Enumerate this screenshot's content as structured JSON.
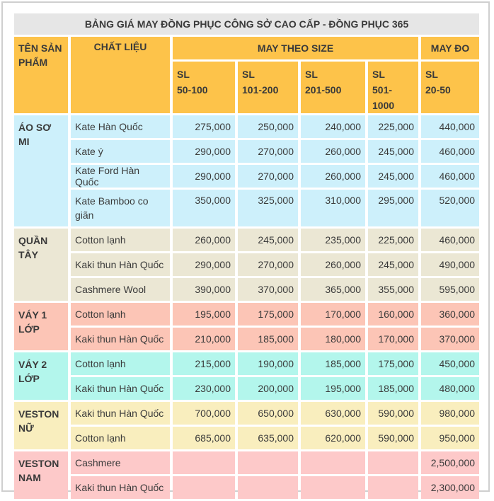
{
  "title": "BẢNG GIÁ MAY ĐỒNG PHỤC CÔNG SỞ CAO CẤP - ĐỒNG PHỤC 365",
  "headers": {
    "product": "TÊN SẢN PHẨM",
    "material": "CHẤT LIỆU",
    "by_size": "MAY THEO SIZE",
    "custom": "MAY ĐO",
    "tiers": [
      {
        "sl": "SL",
        "range": "50-100"
      },
      {
        "sl": "SL",
        "range": "101-200"
      },
      {
        "sl": "SL",
        "range": "201-500"
      },
      {
        "sl": "SL",
        "range": "501-1000"
      }
    ],
    "custom_tier": {
      "sl": "SL",
      "range": "20-50"
    }
  },
  "groups": [
    {
      "name": "ÁO SƠ MI",
      "rows": [
        {
          "material": "Kate Hàn Quốc",
          "prices": [
            "275,000",
            "250,000",
            "240,000",
            "225,000"
          ],
          "custom": "440,000"
        },
        {
          "material": "Kate ý",
          "prices": [
            "290,000",
            "270,000",
            "260,000",
            "245,000"
          ],
          "custom": "460,000"
        },
        {
          "material": "Kate Ford Hàn Quốc",
          "prices": [
            "290,000",
            "270,000",
            "260,000",
            "245,000"
          ],
          "custom": "460,000"
        },
        {
          "material": "Kate Bamboo co giãn",
          "prices": [
            "350,000",
            "325,000",
            "310,000",
            "295,000"
          ],
          "custom": "520,000"
        }
      ]
    },
    {
      "name": "QUẦN TÂY",
      "rows": [
        {
          "material": "Cotton lạnh",
          "prices": [
            "260,000",
            "245,000",
            "235,000",
            "225,000"
          ],
          "custom": "460,000"
        },
        {
          "material": "Kaki thun Hàn Quốc",
          "prices": [
            "290,000",
            "270,000",
            "260,000",
            "245,000"
          ],
          "custom": "490,000"
        },
        {
          "material": "Cashmere Wool",
          "prices": [
            "390,000",
            "370,000",
            "365,000",
            "355,000"
          ],
          "custom": "595,000"
        }
      ]
    },
    {
      "name": "VÁY 1 LỚP",
      "rows": [
        {
          "material": "Cotton lạnh",
          "prices": [
            "195,000",
            "175,000",
            "170,000",
            "160,000"
          ],
          "custom": "360,000"
        },
        {
          "material": "Kaki thun Hàn Quốc",
          "prices": [
            "210,000",
            "185,000",
            "180,000",
            "170,000"
          ],
          "custom": "370,000"
        }
      ]
    },
    {
      "name": "VÁY 2 LỚP",
      "rows": [
        {
          "material": "Cotton lạnh",
          "prices": [
            "215,000",
            "190,000",
            "185,000",
            "175,000"
          ],
          "custom": "450,000"
        },
        {
          "material": "Kaki thun Hàn Quốc",
          "prices": [
            "230,000",
            "200,000",
            "195,000",
            "185,000"
          ],
          "custom": "480,000"
        }
      ]
    },
    {
      "name": "VESTON NỮ",
      "rows": [
        {
          "material": "Kaki thun Hàn Quốc",
          "prices": [
            "700,000",
            "650,000",
            "630,000",
            "590,000"
          ],
          "custom": "980,000"
        },
        {
          "material": "Cotton lạnh",
          "prices": [
            "685,000",
            "635,000",
            "620,000",
            "590,000"
          ],
          "custom": "950,000"
        }
      ]
    },
    {
      "name": "VESTON NAM",
      "rows": [
        {
          "material": "Cashmere",
          "prices": [
            "",
            "",
            "",
            ""
          ],
          "custom": "2,500,000"
        },
        {
          "material": "Kaki thun Hàn Quốc",
          "prices": [
            "",
            "",
            "",
            ""
          ],
          "custom": "2,300,000"
        }
      ]
    }
  ],
  "colors": {
    "header": "#fdc34a",
    "title_bg": "#e6e6e6",
    "ao_so_mi": "#cdf0fb",
    "quan_tay": "#ebe7d4",
    "vay_1_lop": "#fcc5b6",
    "vay_2_lop": "#b3f6ec",
    "veston_nu": "#f9eebe",
    "veston_nam": "#fdc9c9"
  }
}
